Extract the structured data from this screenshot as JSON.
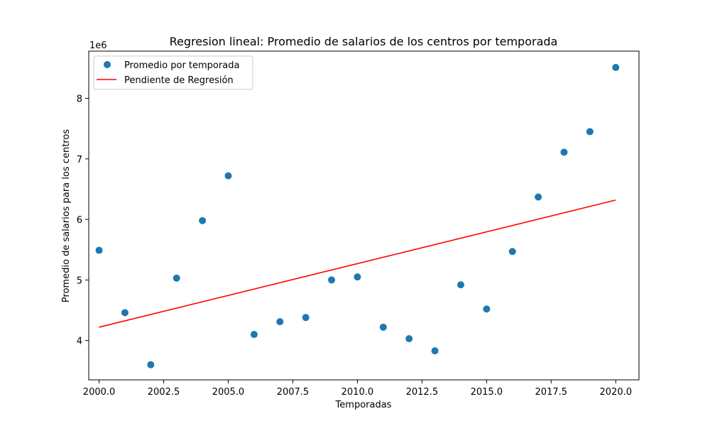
{
  "chart_data": {
    "type": "scatter",
    "title": "Regresion lineal: Promedio de salarios de los centros por temporada",
    "xlabel": "Temporadas",
    "ylabel": "Promedio de salarios para los centros",
    "y_offset_label": "1e6",
    "xlim": [
      1999.6,
      2020.9
    ],
    "ylim": [
      3.35,
      8.78
    ],
    "x_ticks": [
      2000.0,
      2002.5,
      2005.0,
      2007.5,
      2010.0,
      2012.5,
      2015.0,
      2017.5,
      2020.0
    ],
    "x_tick_labels": [
      "2000.0",
      "2002.5",
      "2005.0",
      "2007.5",
      "2010.0",
      "2012.5",
      "2015.0",
      "2017.5",
      "2020.0"
    ],
    "y_ticks": [
      4,
      5,
      6,
      7,
      8
    ],
    "y_tick_labels": [
      "4",
      "5",
      "6",
      "7",
      "8"
    ],
    "grid": false,
    "legend_position": "top-left",
    "series": [
      {
        "name": "Promedio por temporada",
        "kind": "scatter",
        "color": "#1f77b4",
        "x": [
          2000,
          2001,
          2002,
          2003,
          2004,
          2005,
          2006,
          2007,
          2008,
          2009,
          2010,
          2011,
          2012,
          2013,
          2014,
          2015,
          2016,
          2017,
          2018,
          2019,
          2020
        ],
        "y": [
          5.49,
          4.46,
          3.6,
          5.03,
          5.98,
          6.72,
          4.1,
          4.31,
          4.38,
          5.0,
          5.05,
          4.22,
          4.03,
          3.83,
          4.92,
          4.52,
          5.47,
          6.37,
          7.11,
          7.45,
          8.51
        ]
      },
      {
        "name": "Pendiente de Regresión",
        "kind": "line",
        "color": "#ff0000",
        "x": [
          2000,
          2020
        ],
        "y": [
          4.22,
          6.32
        ]
      }
    ]
  }
}
